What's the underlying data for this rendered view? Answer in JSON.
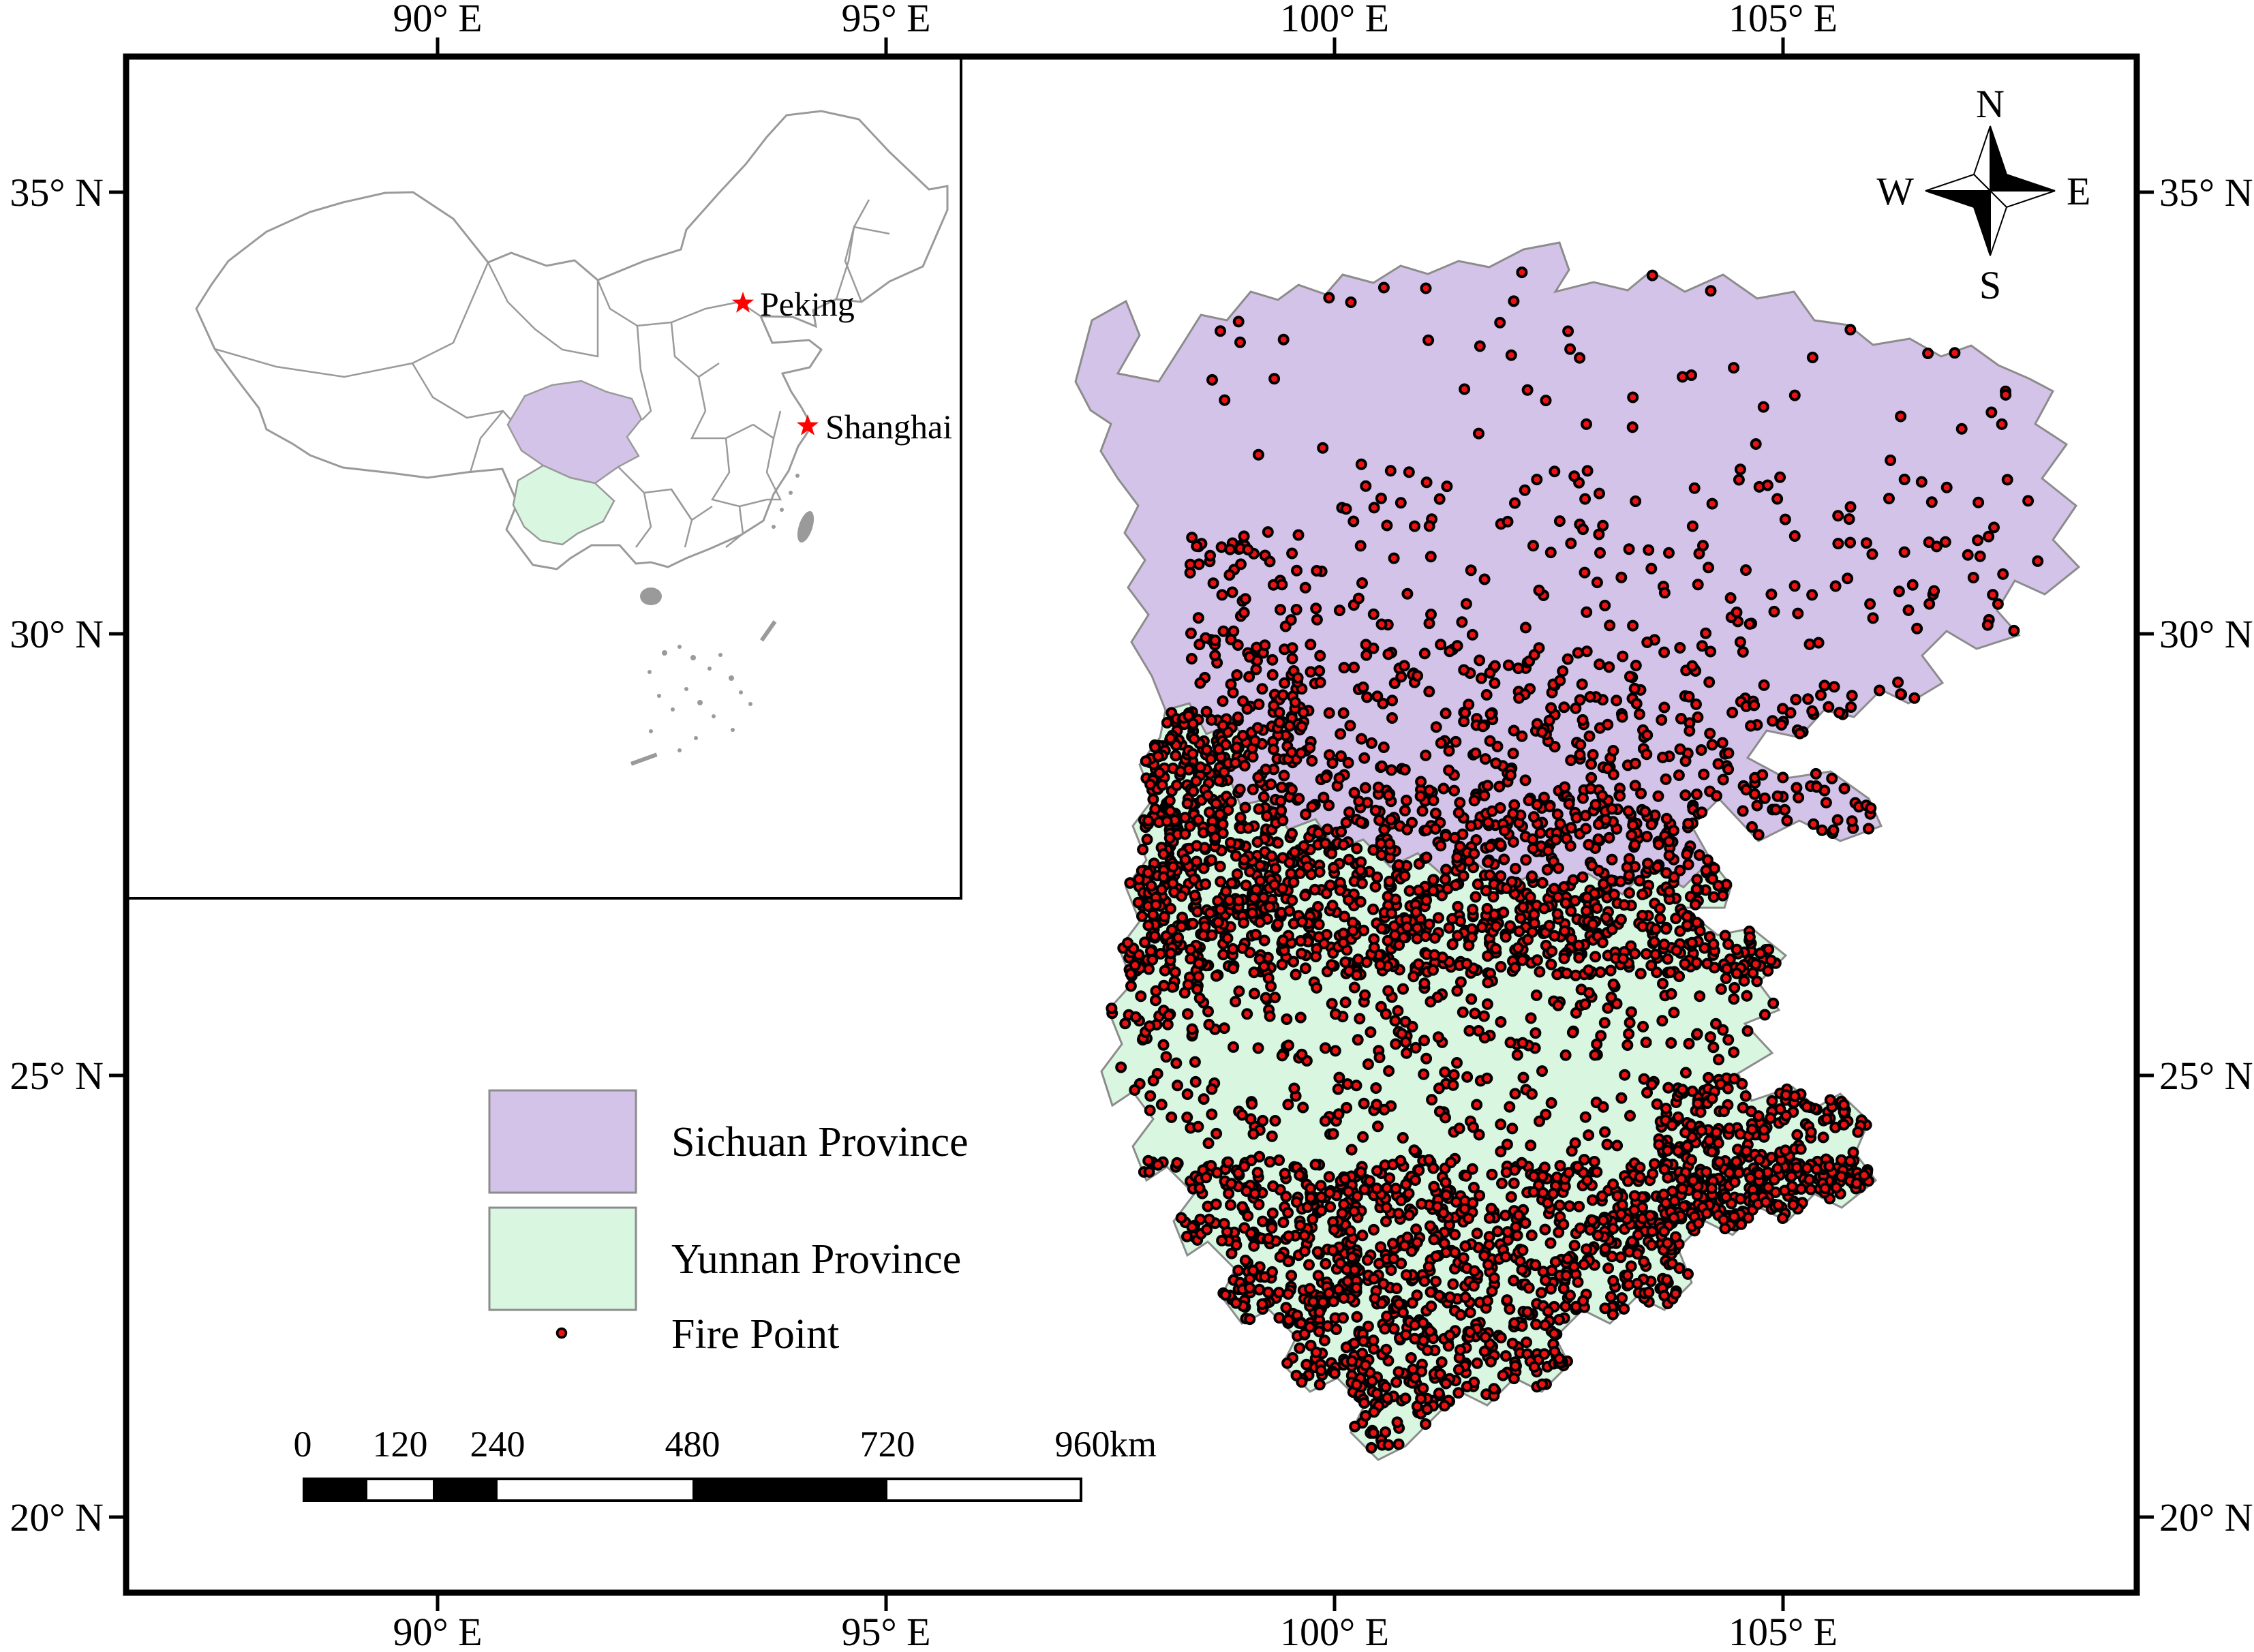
{
  "colors": {
    "sichuan_fill": "#D4C3E8",
    "yunnan_fill": "#D9F6E0",
    "fire_fill": "#ED1111",
    "fire_stroke": "#000000",
    "province_border": "#8C8C8C",
    "china_border": "#9A9A9A",
    "frame": "#000000",
    "city_star": "#FF0000"
  },
  "axes": {
    "top": [
      "90° E",
      "95° E",
      "100° E",
      "105° E"
    ],
    "bottom": [
      "90° E",
      "95° E",
      "100° E",
      "105° E"
    ],
    "left": [
      "35° N",
      "30° N",
      "25° N",
      "20° N"
    ],
    "right": [
      "35° N",
      "30° N",
      "25° N",
      "20° N"
    ]
  },
  "compass": {
    "north": "N",
    "south": "S",
    "east": "E",
    "west": "W"
  },
  "inset": {
    "cities": [
      {
        "name": "Peking"
      },
      {
        "name": "Shanghai"
      }
    ]
  },
  "legend": {
    "items": [
      {
        "label": "Sichuan Province"
      },
      {
        "label": "Yunnan Province"
      },
      {
        "label": "Fire Point"
      }
    ]
  },
  "scalebar": {
    "tick_labels": [
      "0",
      "120",
      "240",
      "480",
      "720",
      "960"
    ],
    "unit": "km"
  },
  "fire_points": {
    "seed": 1337,
    "radius": 6.5,
    "stroke_width": 4,
    "regions": [
      {
        "clip": "yunnan",
        "x": [
          1610,
          2780
        ],
        "y": [
          1000,
          1430
        ],
        "count": 1000
      },
      {
        "clip": "yunnan",
        "x": [
          1610,
          2780
        ],
        "y": [
          1430,
          1700
        ],
        "count": 320
      },
      {
        "clip": "yunnan",
        "x": [
          1610,
          2780
        ],
        "y": [
          1700,
          2160
        ],
        "count": 1200
      },
      {
        "clip": "yunnan",
        "x": [
          2430,
          2780
        ],
        "y": [
          1590,
          1830
        ],
        "count": 240
      },
      {
        "clip": "yunnan",
        "x": [
          1610,
          1760
        ],
        "y": [
          1040,
          1520
        ],
        "count": 90
      },
      {
        "clip": "sichuan",
        "x": [
          1800,
          2530
        ],
        "y": [
          1150,
          1325
        ],
        "count": 300
      },
      {
        "clip": "sichuan",
        "x": [
          1830,
          2530
        ],
        "y": [
          950,
          1150
        ],
        "count": 250
      },
      {
        "clip": "sichuan",
        "x": [
          2530,
          2990
        ],
        "y": [
          1000,
          1300
        ],
        "count": 80
      },
      {
        "clip": "sichuan",
        "x": [
          1740,
          1910
        ],
        "y": [
          780,
          1150
        ],
        "count": 110
      },
      {
        "clip": "sichuan",
        "x": [
          1900,
          2990
        ],
        "y": [
          690,
          960
        ],
        "count": 160
      },
      {
        "clip": "sichuan",
        "x": [
          1750,
          3060
        ],
        "y": [
          380,
          690
        ],
        "count": 50
      },
      {
        "clip": "sichuan",
        "x": [
          2790,
          2890
        ],
        "y": [
          1100,
          1230
        ],
        "count": 14
      }
    ]
  }
}
